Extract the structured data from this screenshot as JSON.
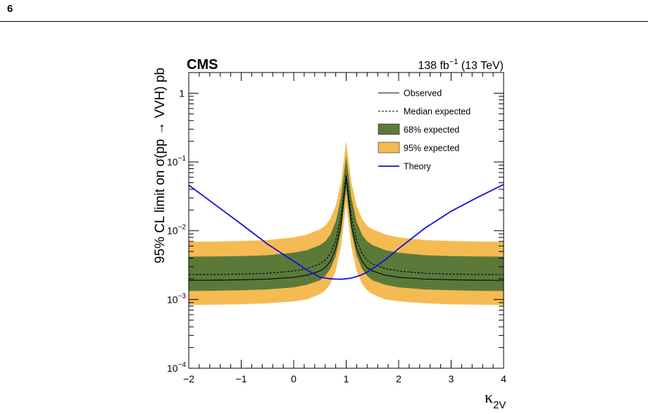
{
  "page": {
    "number": "6"
  },
  "chart_data": {
    "type": "line",
    "experiment_label": "CMS",
    "luminosity_label": {
      "value": "138 fb",
      "superscript": "−1",
      "energy": " (13 TeV)"
    },
    "xlabel": {
      "main": "κ",
      "subscript": "2V"
    },
    "ylabel": "95% CL limit on σ(pp → VVH) pb",
    "xlim": [
      -2,
      4
    ],
    "ylim": [
      0.0001,
      2
    ],
    "yscale": "log",
    "grid": false,
    "legend_position": "top-right",
    "x_ticks": [
      "−2",
      "−1",
      "0",
      "1",
      "2",
      "3",
      "4"
    ],
    "y_ticks": [
      {
        "value": 0.0001,
        "base": "10",
        "exp": "−4"
      },
      {
        "value": 0.001,
        "base": "10",
        "exp": "−3"
      },
      {
        "value": 0.01,
        "base": "10",
        "exp": "−2"
      },
      {
        "value": 0.1,
        "base": "10",
        "exp": "−1"
      },
      {
        "value": 1,
        "base": "1",
        "exp": ""
      }
    ],
    "x": [
      -2.0,
      -1.5,
      -1.0,
      -0.5,
      0.0,
      0.25,
      0.5,
      0.6,
      0.7,
      0.8,
      0.9,
      1.0,
      1.1,
      1.2,
      1.3,
      1.4,
      1.5,
      1.75,
      2.0,
      2.5,
      3.0,
      3.5,
      4.0
    ],
    "series": [
      {
        "name": "Observed",
        "style": "solid",
        "color": "#000000",
        "values": [
          0.0019,
          0.00191,
          0.00193,
          0.00198,
          0.0021,
          0.00225,
          0.0026,
          0.0029,
          0.0036,
          0.0055,
          0.012,
          0.06,
          0.012,
          0.0055,
          0.0036,
          0.0029,
          0.0026,
          0.00225,
          0.0021,
          0.00198,
          0.00193,
          0.00191,
          0.0019
        ]
      },
      {
        "name": "Median expected",
        "style": "dashed",
        "color": "#000000",
        "values": [
          0.0023,
          0.00231,
          0.00234,
          0.0024,
          0.0026,
          0.0028,
          0.0033,
          0.0037,
          0.0047,
          0.0072,
          0.016,
          0.065,
          0.016,
          0.0072,
          0.0047,
          0.0037,
          0.0033,
          0.0028,
          0.0026,
          0.0024,
          0.00234,
          0.00231,
          0.0023
        ]
      },
      {
        "name": "68% expected",
        "style": "band",
        "color": "#5b7a3a",
        "lower": [
          0.00133,
          0.00134,
          0.00136,
          0.0014,
          0.0015,
          0.00163,
          0.0019,
          0.0022,
          0.0028,
          0.0043,
          0.0095,
          0.04,
          0.0095,
          0.0043,
          0.0028,
          0.0022,
          0.0019,
          0.00163,
          0.0015,
          0.0014,
          0.00136,
          0.00134,
          0.00133
        ],
        "upper": [
          0.0042,
          0.00422,
          0.00428,
          0.0044,
          0.0048,
          0.0052,
          0.0062,
          0.007,
          0.0088,
          0.0135,
          0.03,
          0.12,
          0.03,
          0.0135,
          0.0088,
          0.007,
          0.0062,
          0.0052,
          0.0048,
          0.0044,
          0.00428,
          0.00422,
          0.0042
        ]
      },
      {
        "name": "95% expected",
        "style": "band",
        "color": "#f5bb52",
        "lower": [
          0.00083,
          0.00084,
          0.00085,
          0.00088,
          0.00094,
          0.001,
          0.0012,
          0.00135,
          0.0017,
          0.0026,
          0.0058,
          0.025,
          0.0058,
          0.0026,
          0.0017,
          0.00135,
          0.0012,
          0.001,
          0.00094,
          0.00088,
          0.00085,
          0.00084,
          0.00083
        ],
        "upper": [
          0.0069,
          0.00695,
          0.0071,
          0.0073,
          0.008,
          0.0088,
          0.0105,
          0.0118,
          0.015,
          0.023,
          0.05,
          0.2,
          0.05,
          0.023,
          0.015,
          0.0118,
          0.0105,
          0.0088,
          0.008,
          0.0073,
          0.0071,
          0.00695,
          0.0069
        ]
      },
      {
        "name": "Theory",
        "style": "solid",
        "color": "#1010dd",
        "values": [
          0.046,
          0.024,
          0.0125,
          0.0064,
          0.0036,
          0.0027,
          0.0021,
          0.00205,
          0.002,
          0.00198,
          0.00197,
          0.002,
          0.00205,
          0.00215,
          0.0023,
          0.0025,
          0.0028,
          0.0038,
          0.0055,
          0.0109,
          0.0192,
          0.0305,
          0.047
        ]
      }
    ]
  }
}
